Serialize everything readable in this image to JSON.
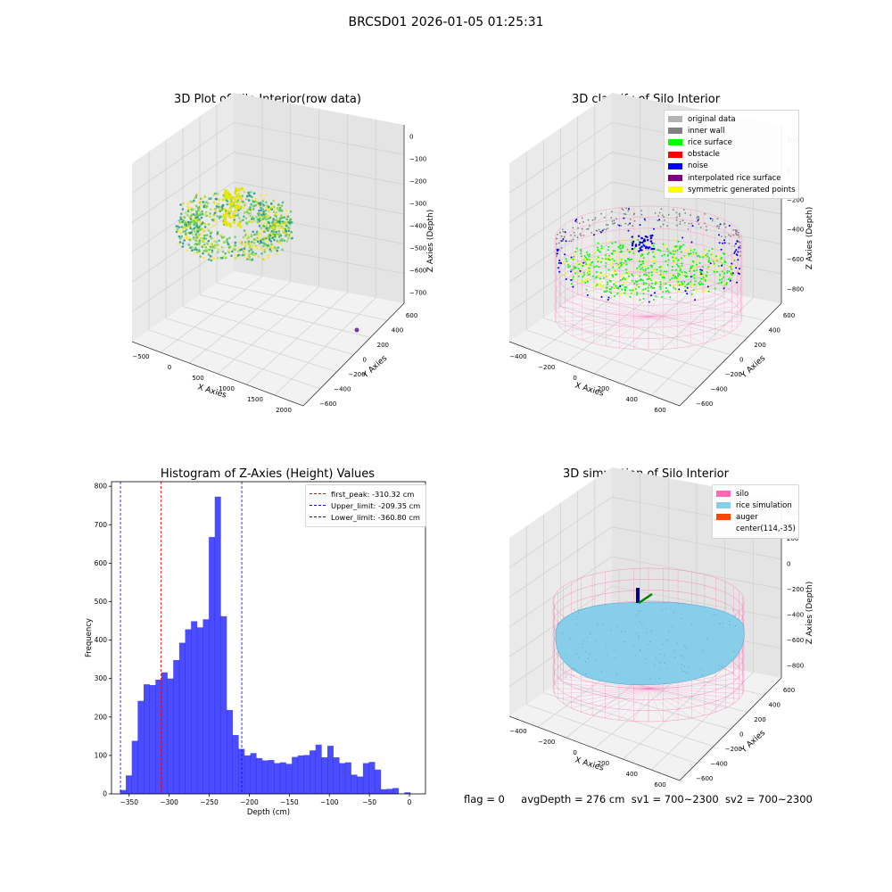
{
  "figure_title": "BRCSD01 2026-01-05 01:25:31",
  "footer": {
    "flag": "flag = 0",
    "avg_depth": "avgDepth = 276 cm",
    "sv1": "sv1 = 700~2300",
    "sv2": "sv2 = 700~2300"
  },
  "panels": {
    "raw": {
      "title": "3D Plot of Silo Interior(row data)",
      "xlabel": "X Axies",
      "ylabel": "Y Axies",
      "zlabel": "Z Axies (Depth)",
      "xticks": [
        "−500",
        "0",
        "500",
        "1000",
        "1500",
        "2000"
      ],
      "yticks": [
        "−600",
        "−400",
        "−200",
        "0",
        "200",
        "400",
        "600"
      ],
      "zticks": [
        "0",
        "−100",
        "−200",
        "−300",
        "−400",
        "−500",
        "−600",
        "−700"
      ]
    },
    "classify": {
      "title": "3D classify of Silo Interior",
      "xlabel": "X Axies",
      "ylabel": "Y Axies",
      "zlabel": "Z Axies (Depth)",
      "xticks": [
        "−400",
        "−200",
        "0",
        "200",
        "400",
        "600"
      ],
      "yticks": [
        "−600",
        "−400",
        "−200",
        "0",
        "200",
        "400",
        "600"
      ],
      "zticks": [
        "200",
        "0",
        "−200",
        "−400",
        "−600",
        "−800"
      ],
      "legend": [
        {
          "label": "original data",
          "color": "#b3b3b3"
        },
        {
          "label": "inner wall",
          "color": "#808080"
        },
        {
          "label": "rice surface",
          "color": "#00ff00"
        },
        {
          "label": "obstacle",
          "color": "#ff0000"
        },
        {
          "label": "noise",
          "color": "#0000ff"
        },
        {
          "label": "interpolated rice surface",
          "color": "#800080"
        },
        {
          "label": "symmetric generated points",
          "color": "#ffff00"
        }
      ]
    },
    "simulation": {
      "title": "3D simulation of Silo Interior",
      "xlabel": "X Axies",
      "ylabel": "Y Axies",
      "zlabel": "Z Axies (Depth)",
      "xticks": [
        "−400",
        "−200",
        "0",
        "200",
        "400",
        "600"
      ],
      "yticks": [
        "−600",
        "−400",
        "−200",
        "0",
        "200",
        "400",
        "600"
      ],
      "zticks": [
        "400",
        "200",
        "0",
        "−200",
        "−400",
        "−600",
        "−800"
      ],
      "legend": [
        {
          "label": "silo",
          "color": "#ff69b4"
        },
        {
          "label": "rice simulation",
          "color": "#87ceeb"
        },
        {
          "label": "auger",
          "color": "#ff4500"
        },
        {
          "label": "center(114,-35)",
          "color": ""
        }
      ]
    }
  },
  "chart_data": {
    "type": "bar",
    "title": "Histogram of Z-Axies (Height) Values",
    "xlabel": "Depth (cm)",
    "ylabel": "Frequency",
    "xlim": [
      -372,
      20
    ],
    "ylim": [
      0,
      812
    ],
    "xticks": [
      -350,
      -300,
      -250,
      -200,
      -150,
      -100,
      -50,
      0
    ],
    "yticks": [
      0,
      100,
      200,
      300,
      400,
      500,
      600,
      700,
      800
    ],
    "bar_color": "#0000ff",
    "bin_width": 7.4,
    "bin_starts": [
      -361.5,
      -354.1,
      -346.7,
      -339.3,
      -331.9,
      -324.5,
      -317.1,
      -309.7,
      -302.3,
      -294.9,
      -287.5,
      -280.1,
      -272.7,
      -265.3,
      -257.9,
      -250.5,
      -243.1,
      -235.7,
      -228.3,
      -220.9,
      -213.5,
      -206.1,
      -198.7,
      -191.3,
      -183.9,
      -176.5,
      -169.1,
      -161.7,
      -154.3,
      -146.9,
      -139.5,
      -132.1,
      -124.7,
      -117.3,
      -109.9,
      -102.5,
      -95.1,
      -87.7,
      -80.3,
      -72.9,
      -65.5,
      -58.1,
      -50.7,
      -43.3,
      -35.9,
      -28.5,
      -21.1,
      -13.7,
      -6.3
    ],
    "counts": [
      10,
      48,
      138,
      242,
      285,
      283,
      297,
      316,
      300,
      348,
      393,
      428,
      449,
      433,
      454,
      668,
      773,
      462,
      218,
      153,
      117,
      100,
      106,
      93,
      87,
      88,
      80,
      82,
      78,
      96,
      100,
      101,
      113,
      128,
      95,
      125,
      95,
      80,
      82,
      50,
      45,
      80,
      83,
      63,
      12,
      13,
      15,
      0,
      4
    ],
    "vlines": [
      {
        "label": "first_peak: -310.32 cm",
        "x": -310.32,
        "color": "#ff0000"
      },
      {
        "label": "Upper_limit: -209.35 cm",
        "x": -209.35,
        "color": "#0000ff"
      },
      {
        "label": "Lower_limit: -360.80 cm",
        "x": -360.8,
        "color": "#0000ff"
      }
    ],
    "legend_position": "top-right"
  }
}
